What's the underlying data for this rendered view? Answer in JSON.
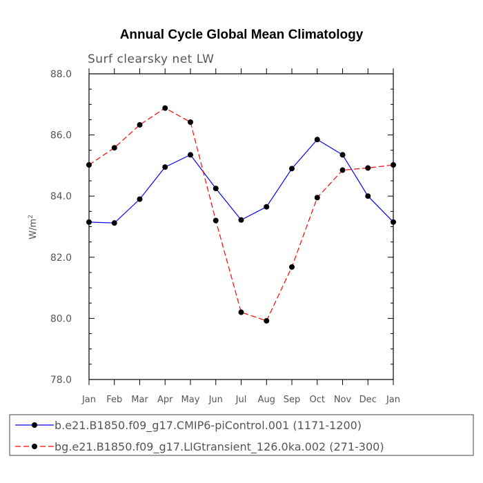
{
  "chart_data": {
    "type": "line",
    "title": "Annual Cycle Global Mean Climatology",
    "subtitle": "Surf clearsky net LW",
    "ylabel_base": "W/m",
    "ylabel_sup": "2",
    "ylim": [
      78.0,
      88.0
    ],
    "y_ticks": [
      "78.0",
      "80.0",
      "82.0",
      "84.0",
      "86.0",
      "88.0"
    ],
    "y_tick_values": [
      78,
      80,
      82,
      84,
      86,
      88
    ],
    "categories": [
      "Jan",
      "Feb",
      "Mar",
      "Apr",
      "May",
      "Jun",
      "Jul",
      "Aug",
      "Sep",
      "Oct",
      "Nov",
      "Dec",
      "Jan"
    ],
    "series": [
      {
        "name": "b.e21.B1850.f09_g17.CMIP6-piControl.001 (1171-1200)",
        "color": "#0000ff",
        "dashed": false,
        "values": [
          83.15,
          83.12,
          83.9,
          84.95,
          85.35,
          84.25,
          83.22,
          83.65,
          84.9,
          85.85,
          85.35,
          84.0,
          83.15
        ]
      },
      {
        "name": "bg.e21.B1850.f09_g17.LIGtransient_126.0ka.002 (271-300)",
        "color": "#ff0000",
        "dashed": true,
        "values": [
          85.02,
          85.58,
          86.33,
          86.88,
          86.42,
          83.2,
          80.2,
          79.92,
          81.68,
          83.95,
          84.85,
          84.92,
          85.02
        ]
      }
    ]
  }
}
